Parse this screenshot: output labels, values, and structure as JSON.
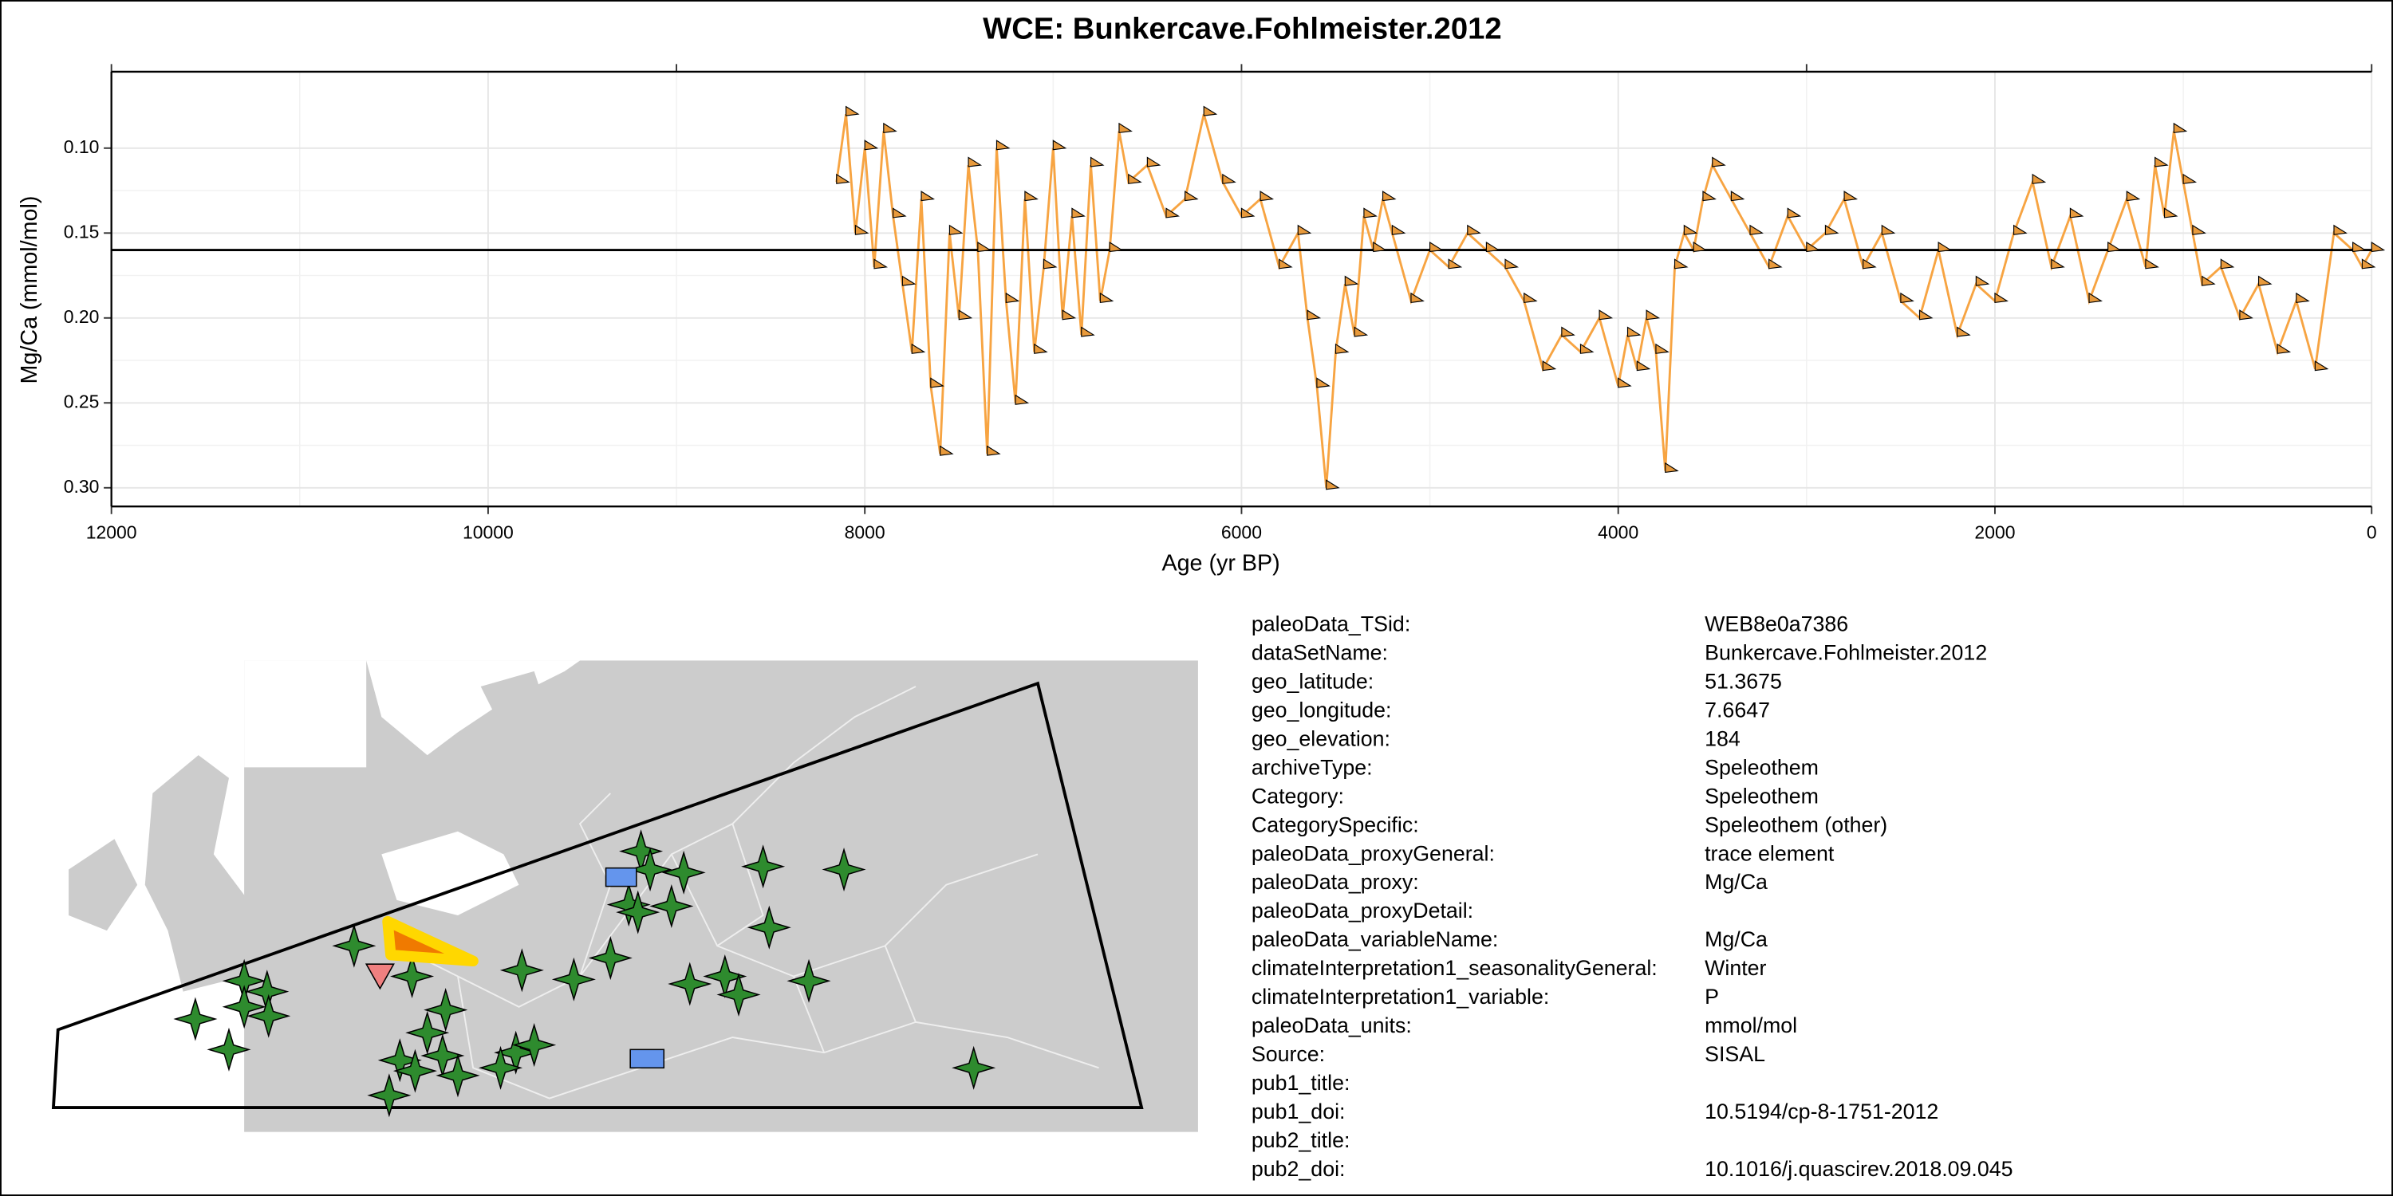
{
  "chart_data": {
    "type": "line",
    "title": "WCE: Bunkercave.Fohlmeister.2012",
    "x_label": "Age (yr BP)",
    "y_label": "Mg/Ca (mmol/mol)",
    "xlim": [
      12000,
      0
    ],
    "xticks": [
      12000,
      10000,
      8000,
      6000,
      4000,
      2000,
      0
    ],
    "x2ticks": [
      12000,
      9000,
      6000,
      3000,
      0
    ],
    "ylim": [
      0.055,
      0.311
    ],
    "y_reversed": true,
    "yticks": [
      {
        "value": 0.1,
        "label": "0.10"
      },
      {
        "value": 0.15,
        "label": "0.15"
      },
      {
        "value": 0.2,
        "label": "0.20"
      },
      {
        "value": 0.25,
        "label": "0.25"
      },
      {
        "value": 0.3,
        "label": "0.30"
      }
    ],
    "grid": true,
    "hline": 0.16,
    "color": "#f7a442",
    "x": [
      8150,
      8100,
      8050,
      8000,
      7950,
      7900,
      7850,
      7800,
      7750,
      7700,
      7650,
      7600,
      7550,
      7500,
      7450,
      7400,
      7350,
      7300,
      7250,
      7200,
      7150,
      7100,
      7050,
      7000,
      6950,
      6900,
      6850,
      6800,
      6750,
      6700,
      6650,
      6600,
      6500,
      6400,
      6300,
      6200,
      6100,
      6000,
      5900,
      5800,
      5700,
      5650,
      5600,
      5550,
      5500,
      5450,
      5400,
      5350,
      5300,
      5250,
      5200,
      5100,
      5000,
      4900,
      4800,
      4700,
      4600,
      4500,
      4400,
      4300,
      4200,
      4100,
      4000,
      3950,
      3900,
      3850,
      3800,
      3750,
      3700,
      3650,
      3600,
      3550,
      3500,
      3400,
      3300,
      3200,
      3100,
      3000,
      2900,
      2800,
      2700,
      2600,
      2500,
      2400,
      2300,
      2200,
      2100,
      2000,
      1900,
      1800,
      1700,
      1600,
      1500,
      1400,
      1300,
      1200,
      1150,
      1100,
      1050,
      1000,
      950,
      900,
      800,
      700,
      600,
      500,
      400,
      300,
      200,
      100,
      50,
      0
    ],
    "values": [
      0.12,
      0.08,
      0.15,
      0.1,
      0.17,
      0.09,
      0.14,
      0.18,
      0.22,
      0.13,
      0.24,
      0.28,
      0.15,
      0.2,
      0.11,
      0.16,
      0.28,
      0.1,
      0.19,
      0.25,
      0.13,
      0.22,
      0.17,
      0.1,
      0.2,
      0.14,
      0.21,
      0.11,
      0.19,
      0.16,
      0.09,
      0.12,
      0.11,
      0.14,
      0.13,
      0.08,
      0.12,
      0.14,
      0.13,
      0.17,
      0.15,
      0.2,
      0.24,
      0.3,
      0.22,
      0.18,
      0.21,
      0.14,
      0.16,
      0.13,
      0.15,
      0.19,
      0.16,
      0.17,
      0.15,
      0.16,
      0.17,
      0.19,
      0.23,
      0.21,
      0.22,
      0.2,
      0.24,
      0.21,
      0.23,
      0.2,
      0.22,
      0.29,
      0.17,
      0.15,
      0.16,
      0.13,
      0.11,
      0.13,
      0.15,
      0.17,
      0.14,
      0.16,
      0.15,
      0.13,
      0.17,
      0.15,
      0.19,
      0.2,
      0.16,
      0.21,
      0.18,
      0.19,
      0.15,
      0.12,
      0.17,
      0.14,
      0.19,
      0.16,
      0.13,
      0.17,
      0.11,
      0.14,
      0.09,
      0.12,
      0.15,
      0.18,
      0.17,
      0.2,
      0.18,
      0.22,
      0.19,
      0.23,
      0.15,
      0.16,
      0.17,
      0.16
    ]
  },
  "metadata": {
    "rows": [
      [
        "paleoData_TSid:",
        "WEB8e0a7386"
      ],
      [
        "dataSetName:",
        "Bunkercave.Fohlmeister.2012"
      ],
      [
        "geo_latitude:",
        "51.3675"
      ],
      [
        "geo_longitude:",
        "7.6647"
      ],
      [
        "geo_elevation:",
        "184"
      ],
      [
        "archiveType:",
        "Speleothem"
      ],
      [
        "Category:",
        "Speleothem"
      ],
      [
        "CategorySpecific:",
        "Speleothem (other)"
      ],
      [
        "paleoData_proxyGeneral:",
        "trace element"
      ],
      [
        "paleoData_proxy:",
        "Mg/Ca"
      ],
      [
        "paleoData_proxyDetail:"
      ],
      [
        "paleoData_variableName:",
        "Mg/Ca"
      ],
      [
        "climateInterpretation1_seasonalityGeneral:",
        "Winter"
      ],
      [
        "climateInterpretation1_variable:",
        "P"
      ],
      [
        "paleoData_units:",
        "mmol/mol"
      ],
      [
        "Source:",
        "SISAL"
      ],
      [
        "pub1_title:"
      ],
      [
        "pub1_doi:",
        "10.5194/cp-8-1751-2012"
      ],
      [
        "pub2_title:"
      ],
      [
        "pub2_doi:",
        "10.1016/j.quascirev.2018.09.045"
      ]
    ]
  }
}
